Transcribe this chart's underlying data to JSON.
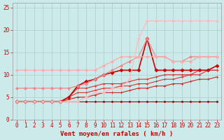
{
  "background_color": "#cceaea",
  "grid_color": "#aacccc",
  "xlabel": "Vent moyen/en rafales ( km/h )",
  "xlabel_color": "#cc0000",
  "xlabel_fontsize": 6.5,
  "tick_color": "#cc0000",
  "tick_fontsize": 5.5,
  "xlim": [
    -0.5,
    23.5
  ],
  "ylim": [
    0,
    26
  ],
  "yticks": [
    0,
    5,
    10,
    15,
    20,
    25
  ],
  "xticks": [
    0,
    1,
    2,
    3,
    4,
    5,
    6,
    7,
    8,
    9,
    10,
    11,
    12,
    13,
    14,
    15,
    16,
    17,
    18,
    19,
    20,
    21,
    22,
    23
  ],
  "series": [
    {
      "x": [
        0,
        1,
        2,
        3,
        4,
        5,
        6,
        7,
        8,
        9,
        10,
        11,
        12,
        13,
        14,
        15,
        16,
        17,
        18,
        19,
        20,
        21,
        22,
        23
      ],
      "y": [
        4,
        4,
        4,
        4,
        4,
        4,
        4,
        4,
        4,
        4,
        4,
        4,
        4,
        4,
        4,
        4,
        4,
        4,
        4,
        4,
        4,
        4,
        4,
        4
      ],
      "color": "#990000",
      "lw": 0.8,
      "marker": "D",
      "ms": 1.5
    },
    {
      "x": [
        0,
        1,
        2,
        3,
        4,
        5,
        6,
        7,
        8,
        9,
        10,
        11,
        12,
        13,
        14,
        15,
        16,
        17,
        18,
        19,
        20,
        21,
        22,
        23
      ],
      "y": [
        4,
        4,
        4,
        4,
        4,
        4,
        4.5,
        5,
        5,
        5.5,
        6,
        6,
        6,
        6.5,
        7,
        7,
        7.5,
        7.5,
        8,
        8,
        8.5,
        9,
        9,
        9.5
      ],
      "color": "#cc2222",
      "lw": 0.8,
      "marker": "+",
      "ms": 3
    },
    {
      "x": [
        0,
        1,
        2,
        3,
        4,
        5,
        6,
        7,
        8,
        9,
        10,
        11,
        12,
        13,
        14,
        15,
        16,
        17,
        18,
        19,
        20,
        21,
        22,
        23
      ],
      "y": [
        4,
        4,
        4,
        4,
        4,
        4,
        5,
        6,
        6,
        6.5,
        7,
        7,
        7.5,
        7.5,
        8,
        8,
        8.5,
        9,
        9,
        9.5,
        10,
        10,
        11,
        11
      ],
      "color": "#dd3333",
      "lw": 0.8,
      "marker": "+",
      "ms": 3
    },
    {
      "x": [
        0,
        1,
        2,
        3,
        4,
        5,
        6,
        7,
        8,
        9,
        10,
        11,
        12,
        13,
        14,
        15,
        16,
        17,
        18,
        19,
        20,
        21,
        22,
        23
      ],
      "y": [
        4,
        4,
        4,
        4,
        4,
        4,
        5,
        7,
        7,
        7.5,
        8,
        8,
        8,
        8.5,
        9,
        9,
        9.5,
        10,
        10,
        10,
        10,
        11,
        11,
        11
      ],
      "color": "#dd3333",
      "lw": 0.8,
      "marker": "+",
      "ms": 3
    },
    {
      "x": [
        0,
        1,
        2,
        3,
        4,
        5,
        6,
        7,
        8,
        9,
        10,
        11,
        12,
        13,
        14,
        15,
        16,
        17,
        18,
        19,
        20,
        21,
        22,
        23
      ],
      "y": [
        4,
        4,
        4,
        4,
        4,
        4,
        5,
        7.5,
        8.5,
        9,
        10,
        10.5,
        11,
        11,
        11,
        18,
        11,
        11,
        11,
        11,
        11,
        11,
        11,
        12
      ],
      "color": "#cc0000",
      "lw": 1.2,
      "marker": "D",
      "ms": 2.5
    },
    {
      "x": [
        0,
        1,
        2,
        3,
        4,
        5,
        6,
        7,
        8,
        9,
        10,
        11,
        12,
        13,
        14,
        15,
        16,
        17,
        18,
        19,
        20,
        21,
        22,
        23
      ],
      "y": [
        7,
        7,
        7,
        7,
        7,
        7,
        7,
        7.5,
        8,
        9,
        10,
        11,
        12,
        13,
        14,
        18,
        14,
        14,
        13,
        13,
        14,
        14,
        14,
        14
      ],
      "color": "#ee8888",
      "lw": 0.9,
      "marker": "D",
      "ms": 2
    },
    {
      "x": [
        0,
        1,
        2,
        3,
        4,
        5,
        6,
        7,
        8,
        9,
        10,
        11,
        12,
        13,
        14,
        15,
        16,
        17,
        18,
        19,
        20,
        21,
        22,
        23
      ],
      "y": [
        11,
        11,
        11,
        11,
        11,
        11,
        11,
        11,
        11,
        11,
        12,
        13,
        14,
        14,
        14,
        14,
        14,
        14,
        13,
        13,
        13,
        14,
        14,
        14
      ],
      "color": "#ffaaaa",
      "lw": 0.9,
      "marker": "D",
      "ms": 2
    },
    {
      "x": [
        0,
        1,
        2,
        3,
        4,
        5,
        6,
        7,
        8,
        9,
        10,
        11,
        12,
        13,
        14,
        15,
        16,
        17,
        18,
        19,
        20,
        21,
        22,
        23
      ],
      "y": [
        4,
        4,
        4,
        4,
        4,
        4,
        4,
        4,
        5,
        6,
        6,
        7,
        7,
        9,
        18,
        22,
        22,
        22,
        22,
        22,
        22,
        22,
        22,
        22
      ],
      "color": "#ffbbbb",
      "lw": 0.9,
      "marker": "D",
      "ms": 2
    }
  ]
}
